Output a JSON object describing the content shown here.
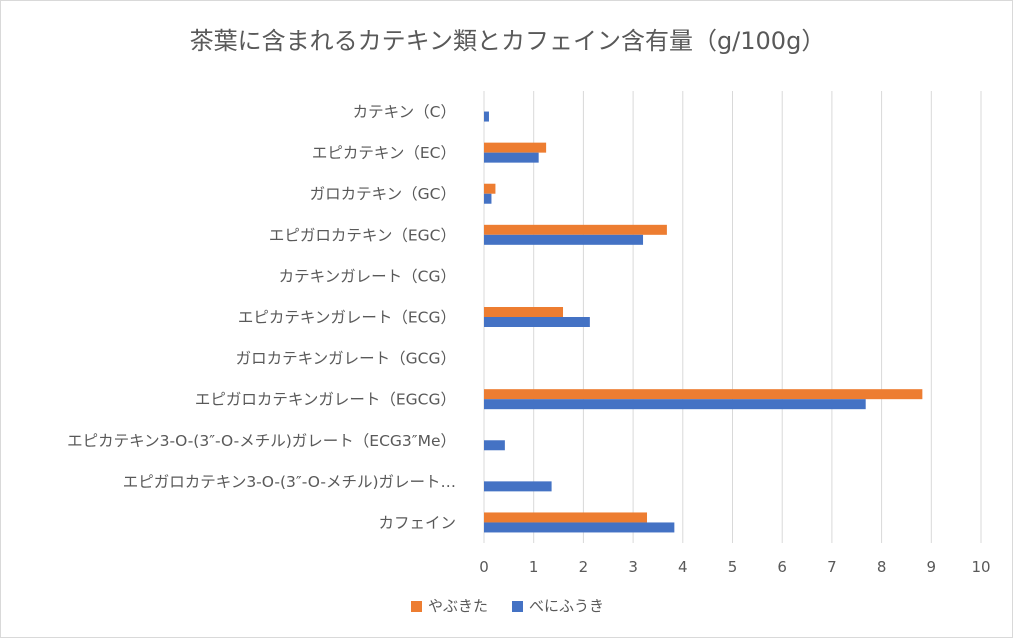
{
  "chart_data": {
    "type": "bar",
    "orientation": "horizontal",
    "title": "茶葉に含まれるカテキン類とカフェイン含有量（g/100g）",
    "categories": [
      "カテキン（C）",
      "エピカテキン（EC）",
      "ガロカテキン（GC）",
      "エピガロカテキン（EGC）",
      "カテキンガレート（CG）",
      "エピカテキンガレート（ECG）",
      "ガロカテキンガレート（GCG）",
      "エピガロカテキンガレート（EGCG）",
      "エピカテキン3-O-(3″-O-メチル)ガレート（ECG3″Me）",
      "エピガロカテキン3-O-(3″-O-メチル)ガレート…",
      "カフェイン"
    ],
    "series": [
      {
        "name": "やぶきた",
        "color": "#ed7d31",
        "values": [
          0,
          1.25,
          0.23,
          3.68,
          0,
          1.59,
          0,
          8.82,
          0,
          0,
          3.28
        ]
      },
      {
        "name": "べにふうき",
        "color": "#4472c4",
        "values": [
          0.1,
          1.1,
          0.15,
          3.2,
          0,
          2.13,
          0,
          7.68,
          0.42,
          1.36,
          3.83
        ]
      }
    ],
    "xlim": [
      0,
      10
    ],
    "xticks": [
      "0",
      "1",
      "2",
      "3",
      "4",
      "5",
      "6",
      "7",
      "8",
      "9",
      "10"
    ],
    "grid": true,
    "legend_position": "bottom"
  }
}
